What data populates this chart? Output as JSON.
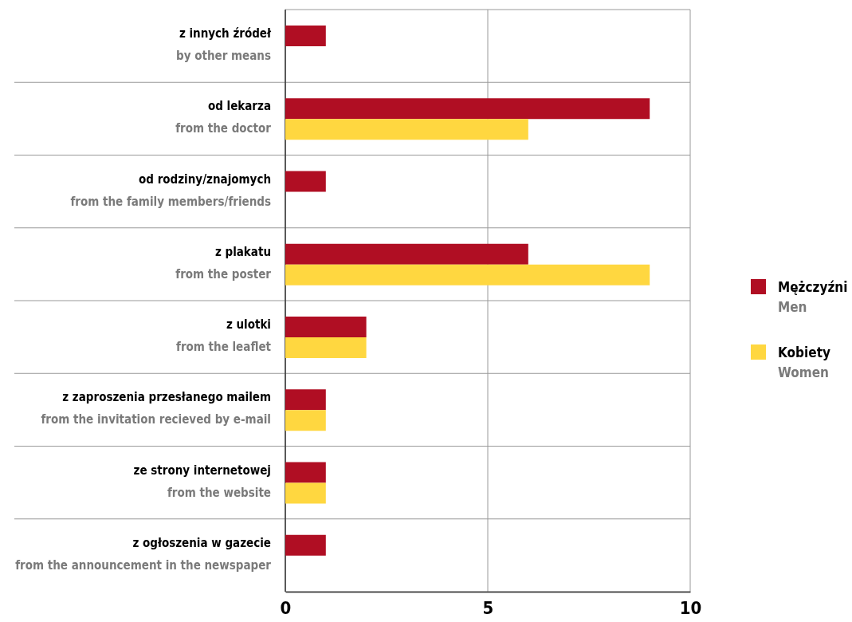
{
  "chart_data": {
    "type": "bar",
    "orientation": "horizontal",
    "categories": [
      "z innych źródeł\nby other means",
      "od lekarza\nfrom the doctor",
      "od rodziny/znajomych\nfrom the family members/friends",
      "z plakatu\nfrom the poster",
      "z ulotki\nfrom the leaflet",
      "z zaproszenia przesłanego mailem\nfrom the invitation recieved by e-mail",
      "ze strony internetowej\nfrom the website",
      "z ogłoszenia w gazecie\nfrom the announcement in the newspaper"
    ],
    "series": [
      {
        "name": "Mężczyźni\nMen",
        "color": "#b00e23",
        "values": [
          1,
          9,
          1,
          6,
          2,
          1,
          1,
          1
        ]
      },
      {
        "name": "Kobiety\nWomen",
        "color": "#ffd740",
        "values": [
          null,
          6,
          null,
          9,
          2,
          1,
          1,
          null
        ]
      }
    ],
    "xlim": [
      0,
      10
    ],
    "xticks": [
      0,
      5,
      10
    ],
    "grid": "x",
    "legend": "right"
  }
}
